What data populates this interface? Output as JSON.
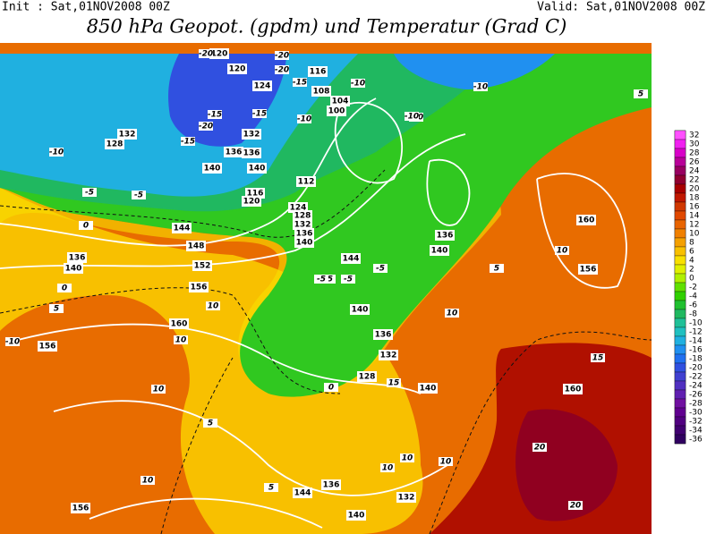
{
  "header": {
    "init": "Init : Sat,01NOV2008 00Z",
    "valid": "Valid: Sat,01NOV2008 00Z",
    "title": "850 hPa Geopot. (gpdm) und Temperatur (Grad C)"
  },
  "colorbar": {
    "levels": [
      32,
      30,
      28,
      26,
      24,
      22,
      20,
      18,
      16,
      14,
      12,
      10,
      8,
      6,
      4,
      2,
      0,
      -2,
      -4,
      -6,
      -8,
      -10,
      -12,
      -14,
      -16,
      -18,
      -20,
      -22,
      -24,
      -26,
      -28,
      -30,
      -32,
      -34,
      -36
    ],
    "colors": [
      "#ff50ff",
      "#f020f0",
      "#d800c8",
      "#b80098",
      "#980060",
      "#900030",
      "#a80000",
      "#c01800",
      "#d03800",
      "#e04800",
      "#e86400",
      "#f08000",
      "#f4a000",
      "#f8c000",
      "#f8e000",
      "#e0f000",
      "#b0f000",
      "#60e000",
      "#30d000",
      "#20c030",
      "#20b860",
      "#20c098",
      "#20c0c0",
      "#20b0e0",
      "#2090f0",
      "#2070f0",
      "#3050e0",
      "#4040d0",
      "#5030c0",
      "#6020b0",
      "#7010a0",
      "#600090",
      "#500080",
      "#400070",
      "#300060"
    ]
  },
  "height_labels": [
    "120",
    "120",
    "124",
    "132",
    "128",
    "132",
    "136",
    "140",
    "136",
    "140",
    "116",
    "120",
    "112",
    "116",
    "108",
    "104",
    "100",
    "124",
    "128",
    "132",
    "136",
    "140",
    "144",
    "148",
    "152",
    "156",
    "160",
    "156",
    "136",
    "140",
    "144",
    "140",
    "136",
    "132",
    "128",
    "140",
    "136",
    "140",
    "144",
    "156",
    "136",
    "132",
    "140",
    "160",
    "160",
    "156"
  ],
  "temp_labels": [
    "-20",
    "-20",
    "-20",
    "-15",
    "-10",
    "-15",
    "-10",
    "-10",
    "-15",
    "-20",
    "-15",
    "-10",
    "-5",
    "-5",
    "0",
    "0",
    "-5",
    "-5",
    "-5",
    "-10",
    "-10",
    "-5",
    "0",
    "5",
    "5",
    "10",
    "10",
    "-10",
    "10",
    "10",
    "5",
    "5",
    "10",
    "15",
    "10",
    "10",
    "15",
    "20",
    "20",
    "10",
    "10",
    "5"
  ]
}
